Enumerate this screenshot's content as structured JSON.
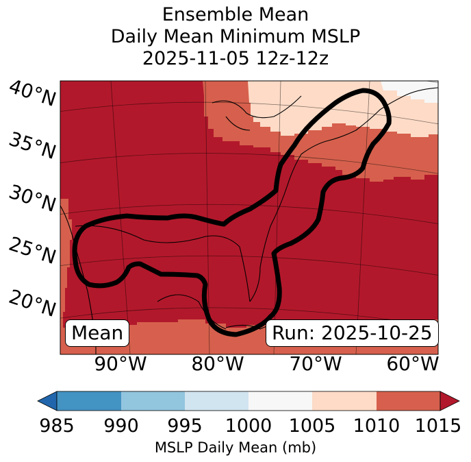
{
  "title": {
    "line1": "Ensemble Mean",
    "line2": "Daily Mean Minimum MSLP",
    "line3": "2025-11-05 12z-12z"
  },
  "map": {
    "lat_labels": [
      "40°N",
      "35°N",
      "30°N",
      "25°N",
      "20°N"
    ],
    "lon_labels": [
      "90°W",
      "80°W",
      "70°W",
      "60°W"
    ],
    "mean_box": "Mean",
    "run_box": "Run: 2025-10-25"
  },
  "colorbar": {
    "ticks": [
      "985",
      "990",
      "995",
      "1000",
      "1005",
      "1010",
      "1015"
    ],
    "label": "MSLP Daily Mean (mb)",
    "colors": {
      "under": "#2166ac",
      "985-990": "#4393c3",
      "990-995": "#92c5de",
      "995-1000": "#d1e5f0",
      "1000-1005": "#f7f7f7",
      "1005-1010": "#fddbc7",
      "1010-1015": "#d6604d",
      "over": "#b2182b"
    }
  }
}
